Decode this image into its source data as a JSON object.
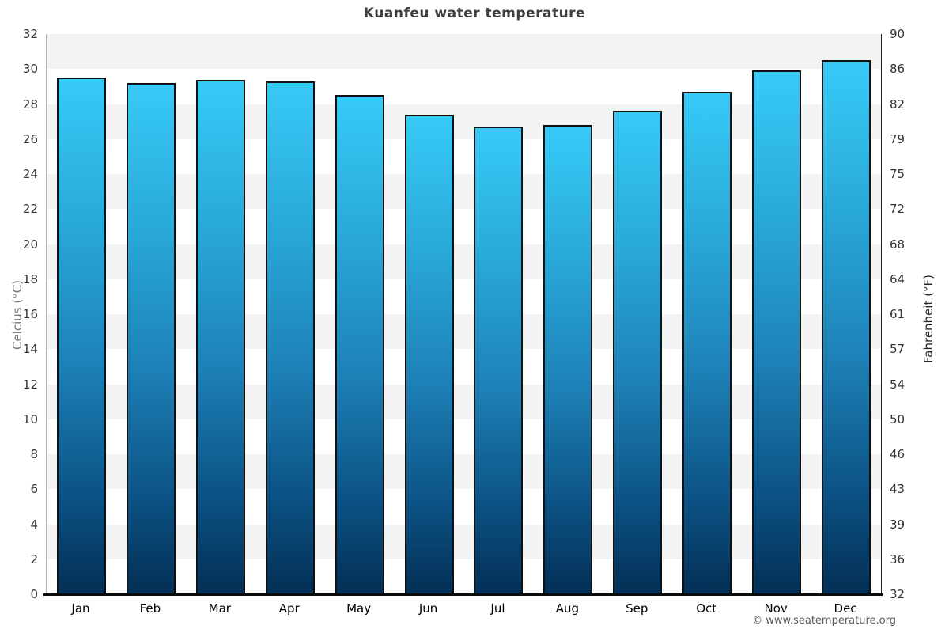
{
  "page": {
    "title": "Kuanfeu water temperature",
    "footer": "© www.seatemperature.org"
  },
  "chart_data": {
    "type": "bar",
    "title": "Kuanfeu water temperature",
    "categories": [
      "Jan",
      "Feb",
      "Mar",
      "Apr",
      "May",
      "Jun",
      "Jul",
      "Aug",
      "Sep",
      "Oct",
      "Nov",
      "Dec"
    ],
    "values": [
      29.5,
      29.2,
      29.4,
      29.3,
      28.5,
      27.4,
      26.7,
      26.8,
      27.6,
      28.7,
      29.9,
      30.5
    ],
    "unit": "°C",
    "ylabel_left": "Celcius (°C)",
    "ylabel_right": "Fahrenheit (°F)",
    "xlabel": "",
    "ylim_celsius": [
      0,
      32
    ],
    "ylim_fahrenheit": [
      32,
      90
    ],
    "yticks_celsius": [
      32,
      30,
      28,
      26,
      24,
      22,
      20,
      18,
      16,
      14,
      12,
      10,
      8,
      6,
      4,
      2,
      0
    ],
    "yticks_fahrenheit_labels": [
      "90",
      "86",
      "82",
      "79",
      "75",
      "72",
      "68",
      "64",
      "61",
      "57",
      "54",
      "50",
      "46",
      "43",
      "39",
      "36",
      "32"
    ],
    "legend": "none",
    "grid": "alternating-bands",
    "colors": {
      "bar_gradient_top": "#37caf7",
      "bar_gradient_mid": "#1e82b8",
      "bar_gradient_bottom": "#032f55",
      "bar_border": "#111111",
      "band_gray": "#f3f3f3",
      "band_white": "#ffffff",
      "title_text": "#3e3e3e",
      "tick_text": "#333333",
      "left_axis_line": "#b3b3b3",
      "right_axis_line": "#222222",
      "bottom_axis_line": "#0b0b0b"
    }
  }
}
